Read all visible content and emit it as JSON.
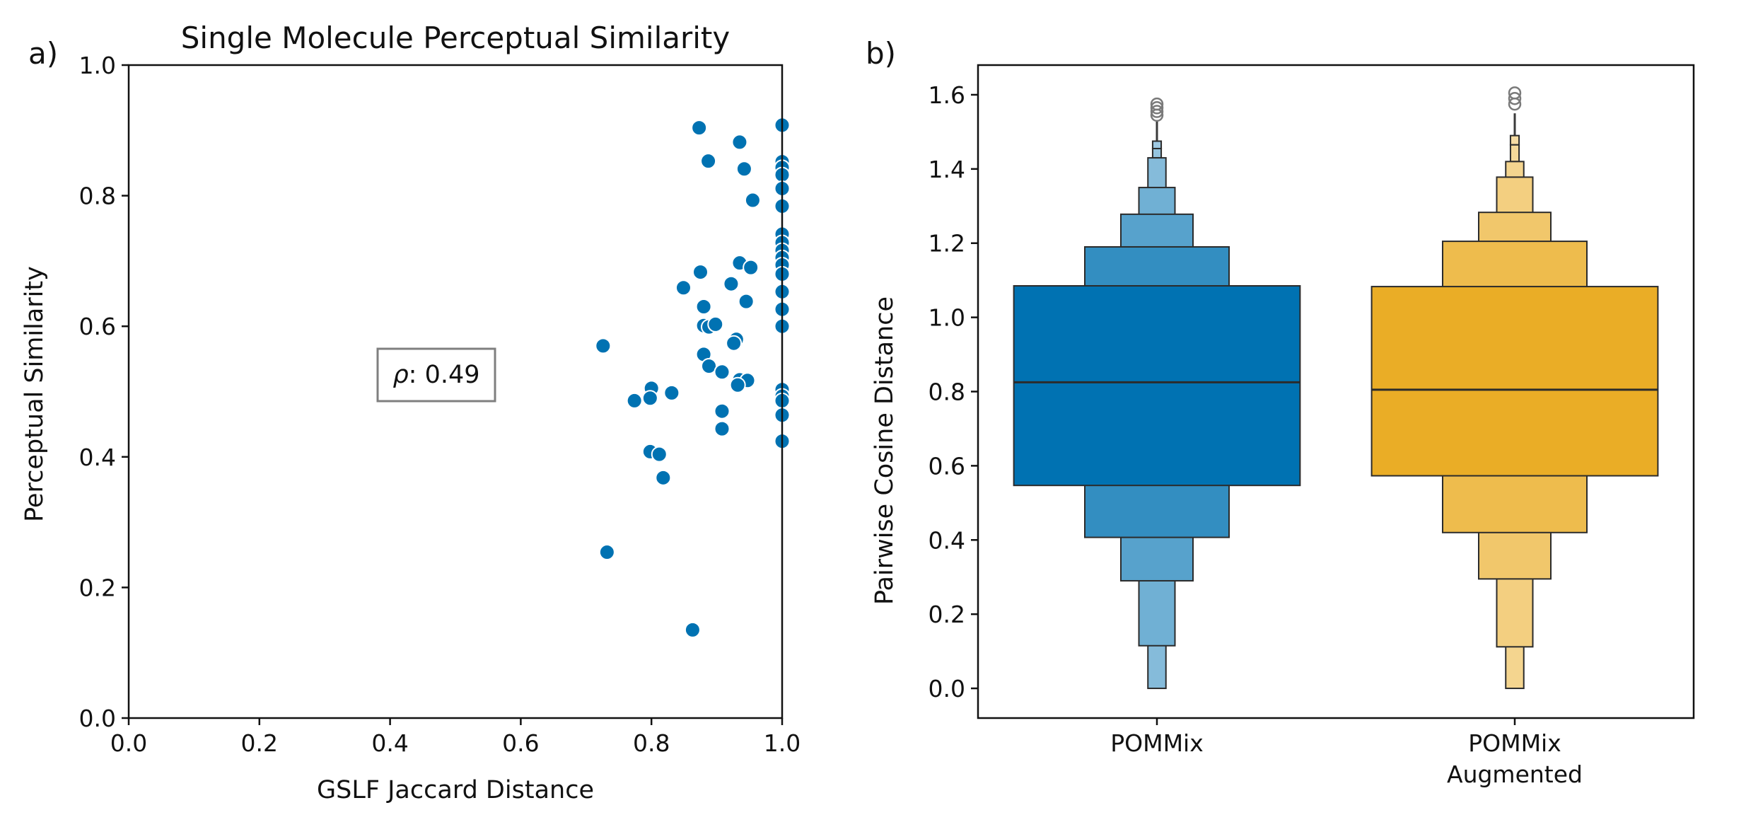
{
  "chart_data": [
    {
      "panel_label": "a)",
      "type": "scatter",
      "title": "Single Molecule Perceptual Similarity",
      "xlabel": "GSLF Jaccard Distance",
      "ylabel": "Perceptual Similarity",
      "xlim": [
        0.0,
        1.0
      ],
      "ylim": [
        0.0,
        1.0
      ],
      "x_ticks": [
        "0.0",
        "0.2",
        "0.4",
        "0.6",
        "0.8",
        "1.0"
      ],
      "y_ticks": [
        "0.0",
        "0.2",
        "0.4",
        "0.6",
        "0.8",
        "1.0"
      ],
      "grid": false,
      "marker_color": "#0072B2",
      "annotation": {
        "prefix": "ρ",
        "value": ": 0.49",
        "x": 0.47,
        "y": 0.52
      },
      "points": [
        {
          "x": 0.873,
          "y": 0.904
        },
        {
          "x": 0.887,
          "y": 0.853
        },
        {
          "x": 0.935,
          "y": 0.882
        },
        {
          "x": 0.942,
          "y": 0.841
        },
        {
          "x": 0.955,
          "y": 0.793
        },
        {
          "x": 0.849,
          "y": 0.659
        },
        {
          "x": 0.875,
          "y": 0.683
        },
        {
          "x": 0.922,
          "y": 0.665
        },
        {
          "x": 0.935,
          "y": 0.697
        },
        {
          "x": 0.952,
          "y": 0.69
        },
        {
          "x": 0.88,
          "y": 0.63
        },
        {
          "x": 0.945,
          "y": 0.638
        },
        {
          "x": 0.88,
          "y": 0.601
        },
        {
          "x": 0.888,
          "y": 0.599
        },
        {
          "x": 0.898,
          "y": 0.603
        },
        {
          "x": 0.93,
          "y": 0.58
        },
        {
          "x": 0.926,
          "y": 0.574
        },
        {
          "x": 0.726,
          "y": 0.57
        },
        {
          "x": 0.88,
          "y": 0.557
        },
        {
          "x": 0.888,
          "y": 0.539
        },
        {
          "x": 0.908,
          "y": 0.53
        },
        {
          "x": 0.935,
          "y": 0.518
        },
        {
          "x": 0.947,
          "y": 0.517
        },
        {
          "x": 0.932,
          "y": 0.51
        },
        {
          "x": 0.831,
          "y": 0.498
        },
        {
          "x": 0.8,
          "y": 0.505
        },
        {
          "x": 0.798,
          "y": 0.49
        },
        {
          "x": 0.774,
          "y": 0.486
        },
        {
          "x": 0.908,
          "y": 0.47
        },
        {
          "x": 0.908,
          "y": 0.443
        },
        {
          "x": 0.798,
          "y": 0.408
        },
        {
          "x": 0.812,
          "y": 0.404
        },
        {
          "x": 0.818,
          "y": 0.368
        },
        {
          "x": 0.732,
          "y": 0.254
        },
        {
          "x": 0.863,
          "y": 0.135
        },
        {
          "x": 1.0,
          "y": 0.908
        },
        {
          "x": 1.0,
          "y": 0.852
        },
        {
          "x": 1.0,
          "y": 0.843
        },
        {
          "x": 1.0,
          "y": 0.832
        },
        {
          "x": 1.0,
          "y": 0.811
        },
        {
          "x": 1.0,
          "y": 0.784
        },
        {
          "x": 1.0,
          "y": 0.741
        },
        {
          "x": 1.0,
          "y": 0.728
        },
        {
          "x": 1.0,
          "y": 0.716
        },
        {
          "x": 1.0,
          "y": 0.705
        },
        {
          "x": 1.0,
          "y": 0.694
        },
        {
          "x": 1.0,
          "y": 0.68
        },
        {
          "x": 1.0,
          "y": 0.653
        },
        {
          "x": 1.0,
          "y": 0.626
        },
        {
          "x": 1.0,
          "y": 0.6
        },
        {
          "x": 1.0,
          "y": 0.503
        },
        {
          "x": 1.0,
          "y": 0.493
        },
        {
          "x": 1.0,
          "y": 0.486
        },
        {
          "x": 1.0,
          "y": 0.464
        },
        {
          "x": 1.0,
          "y": 0.424
        }
      ]
    },
    {
      "panel_label": "b)",
      "type": "boxen",
      "title": "",
      "xlabel": "",
      "ylabel": "Pairwise Cosine Distance",
      "ylim": [
        -0.08,
        1.68
      ],
      "y_ticks": [
        "0.0",
        "0.2",
        "0.4",
        "0.6",
        "0.8",
        "1.0",
        "1.2",
        "1.4",
        "1.6"
      ],
      "grid": false,
      "categories": [
        {
          "label_lines": [
            "POMMix"
          ],
          "color": "#0072B2",
          "median": 0.825,
          "levels": [
            {
              "low": 0.547,
              "high": 1.085,
              "shade": 1.0
            },
            {
              "low": 0.407,
              "high": 1.19,
              "shade": 0.8
            },
            {
              "low": 0.29,
              "high": 1.278,
              "shade": 0.66
            },
            {
              "low": 0.115,
              "high": 1.35,
              "shade": 0.56
            },
            {
              "low": 0.0,
              "high": 1.43,
              "shade": 0.48
            },
            {
              "low": 1.43,
              "high": 1.455,
              "shade": 0.42
            },
            {
              "low": 1.455,
              "high": 1.475,
              "shade": 0.38
            }
          ],
          "whisker_top": 1.53,
          "outliers": [
            1.545,
            1.555,
            1.565,
            1.575
          ]
        },
        {
          "label_lines": [
            "POMMix",
            "Augmented"
          ],
          "color": "#E69F00",
          "median": 0.805,
          "levels": [
            {
              "low": 0.573,
              "high": 1.083,
              "shade": 0.85
            },
            {
              "low": 0.42,
              "high": 1.205,
              "shade": 0.7
            },
            {
              "low": 0.295,
              "high": 1.283,
              "shade": 0.58
            },
            {
              "low": 0.112,
              "high": 1.378,
              "shade": 0.5
            },
            {
              "low": 0.0,
              "high": 1.42,
              "shade": 0.44
            },
            {
              "low": 1.42,
              "high": 1.465,
              "shade": 0.4
            },
            {
              "low": 1.465,
              "high": 1.49,
              "shade": 0.36
            }
          ],
          "whisker_top": 1.55,
          "outliers": [
            1.575,
            1.59,
            1.605
          ]
        }
      ]
    }
  ]
}
